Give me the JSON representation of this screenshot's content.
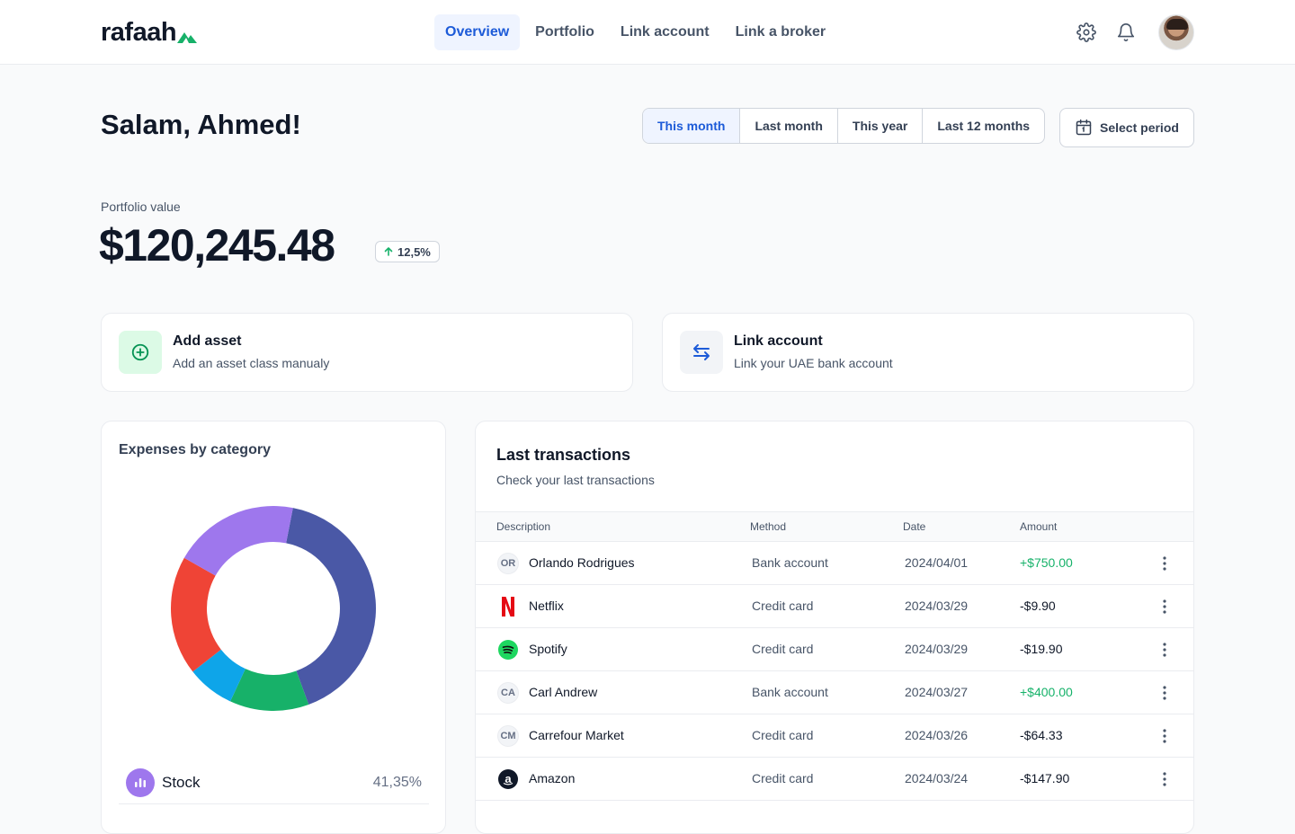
{
  "brand": {
    "name": "rafaah"
  },
  "nav": {
    "items": [
      {
        "label": "Overview",
        "active": true
      },
      {
        "label": "Portfolio"
      },
      {
        "label": "Link account"
      },
      {
        "label": "Link a broker"
      }
    ]
  },
  "header_icons": [
    "gear-icon",
    "bell-icon",
    "avatar"
  ],
  "greeting": "Salam, Ahmed!",
  "period": {
    "tabs": [
      "This month",
      "Last month",
      "This year",
      "Last 12 months"
    ],
    "active": "This month",
    "select_label": "Select period"
  },
  "portfolio": {
    "label": "Portfolio value",
    "value": "$120,245.48",
    "change": "12,5%"
  },
  "actions": {
    "add": {
      "title": "Add asset",
      "subtitle": "Add an asset class manualy"
    },
    "link": {
      "title": "Link account",
      "subtitle": "Link your UAE bank account"
    }
  },
  "expenses": {
    "title": "Expenses by category",
    "legend": [
      {
        "name": "Stock",
        "percent": "41,35%"
      }
    ]
  },
  "chart_data": {
    "type": "pie",
    "title": "Expenses by category",
    "slices": [
      {
        "label": "Stock",
        "value": 41.35,
        "color": "#4a58a6"
      },
      {
        "label": "",
        "value": 12.5,
        "color": "#17b169"
      },
      {
        "label": "",
        "value": 7.5,
        "color": "#0ea5e9"
      },
      {
        "label": "",
        "value": 18.8,
        "color": "#ef4436"
      },
      {
        "label": "",
        "value": 19.85,
        "color": "#9e77ed"
      }
    ]
  },
  "transactions": {
    "title": "Last transactions",
    "subtitle": "Check your last transactions",
    "columns": [
      "Description",
      "Method",
      "Date",
      "Amount"
    ],
    "rows": [
      {
        "logo": "OR",
        "logo_type": "initials",
        "description": "Orlando Rodrigues",
        "method": "Bank account",
        "date": "2024/04/01",
        "amount": "+$750.00",
        "positive": true
      },
      {
        "logo": "netflix-logo-icon",
        "logo_type": "netflix",
        "description": "Netflix",
        "method": "Credit card",
        "date": "2024/03/29",
        "amount": "-$9.90",
        "positive": false
      },
      {
        "logo": "spotify-logo-icon",
        "logo_type": "spotify",
        "description": "Spotify",
        "method": "Credit card",
        "date": "2024/03/29",
        "amount": "-$19.90",
        "positive": false
      },
      {
        "logo": "CA",
        "logo_type": "initials",
        "description": "Carl Andrew",
        "method": "Bank account",
        "date": "2024/03/27",
        "amount": "+$400.00",
        "positive": true
      },
      {
        "logo": "CM",
        "logo_type": "initials",
        "description": "Carrefour Market",
        "method": "Credit card",
        "date": "2024/03/26",
        "amount": "-$64.33",
        "positive": false
      },
      {
        "logo": "amazon-logo-icon",
        "logo_type": "amazon",
        "description": "Amazon",
        "method": "Credit card",
        "date": "2024/03/24",
        "amount": "-$147.90",
        "positive": false
      }
    ]
  },
  "colors": {
    "accent": "#1d5bd8",
    "positive": "#17b26a",
    "brand_mark": "#17b169"
  }
}
